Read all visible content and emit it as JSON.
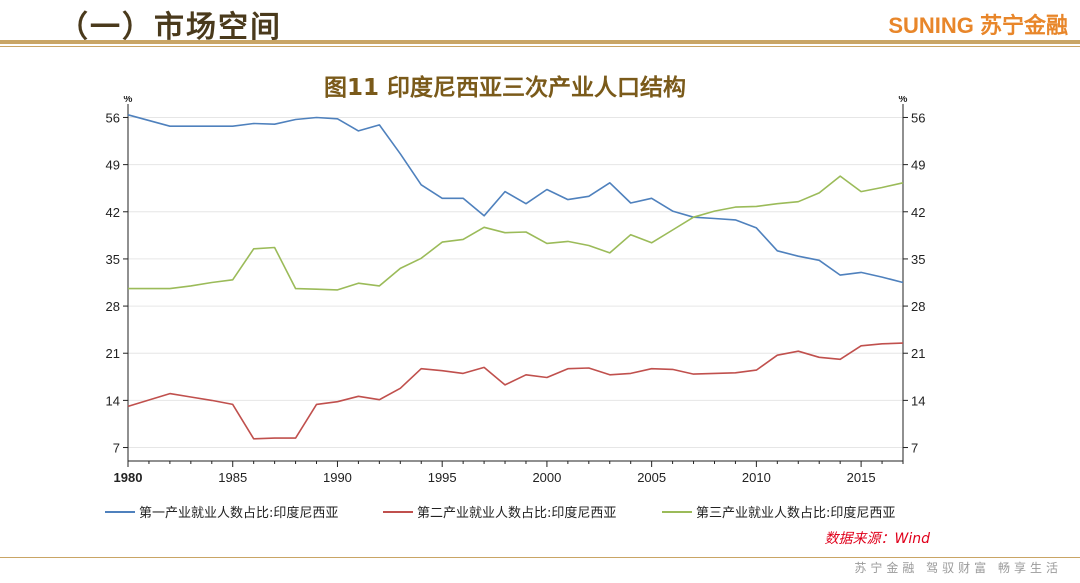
{
  "header": {
    "section_title": "（一）市场空间",
    "brand": "SUNING 苏宁金融"
  },
  "footer": {
    "source": "数据来源：Wind",
    "tagline": "苏宁金融 驾驭财富 畅享生活"
  },
  "colors": {
    "series1": "#4f81bd",
    "series2": "#c0504d",
    "series3": "#9bbb59"
  },
  "chart_data": {
    "type": "line",
    "title": "图11 印度尼西亚三次产业人口结构",
    "y_unit_left": "%",
    "y_unit_right": "%",
    "xlim": [
      1980,
      2017
    ],
    "ylim": [
      5,
      58
    ],
    "x_ticks": [
      1980,
      1985,
      1990,
      1995,
      2000,
      2005,
      2010,
      2015
    ],
    "y_ticks": [
      7,
      14,
      21,
      28,
      35,
      42,
      49,
      56
    ],
    "grid": true,
    "legend_position": "bottom",
    "x": [
      1980,
      1982,
      1983,
      1984,
      1985,
      1986,
      1987,
      1988,
      1989,
      1990,
      1991,
      1992,
      1993,
      1994,
      1995,
      1996,
      1997,
      1998,
      1999,
      2000,
      2001,
      2002,
      2003,
      2004,
      2005,
      2006,
      2007,
      2008,
      2009,
      2010,
      2011,
      2012,
      2013,
      2014,
      2015,
      2016,
      2017
    ],
    "series": [
      {
        "name": "第一产业就业人数占比:印度尼西亚",
        "color": "#4f81bd",
        "values": [
          56.4,
          54.7,
          54.7,
          54.7,
          54.7,
          55.1,
          55.0,
          55.7,
          56.0,
          55.8,
          54.0,
          54.9,
          50.6,
          46.0,
          44.0,
          44.0,
          41.4,
          45.0,
          43.2,
          45.3,
          43.8,
          44.3,
          46.3,
          43.3,
          44.0,
          42.1,
          41.2,
          41.0,
          40.8,
          39.6,
          36.2,
          35.4,
          34.8,
          32.6,
          33.0,
          32.3,
          31.5
        ]
      },
      {
        "name": "第二产业就业人数占比:印度尼西亚",
        "color": "#c0504d",
        "values": [
          13.1,
          15.0,
          14.5,
          14.0,
          13.4,
          8.3,
          8.4,
          8.4,
          13.4,
          13.8,
          14.6,
          14.1,
          15.8,
          18.7,
          18.4,
          18.0,
          18.9,
          16.3,
          17.8,
          17.4,
          18.7,
          18.8,
          17.8,
          18.0,
          18.7,
          18.6,
          17.9,
          18.0,
          18.1,
          18.5,
          20.7,
          21.3,
          20.4,
          20.1,
          22.1,
          22.4,
          22.5
        ]
      },
      {
        "name": "第三产业就业人数占比:印度尼西亚",
        "color": "#9bbb59",
        "values": [
          30.6,
          30.6,
          31.0,
          31.5,
          31.9,
          36.5,
          36.7,
          30.6,
          30.5,
          30.4,
          31.4,
          31.0,
          33.6,
          35.1,
          37.5,
          37.9,
          39.7,
          38.9,
          39.0,
          37.3,
          37.6,
          37.0,
          35.9,
          38.6,
          37.4,
          39.3,
          41.2,
          42.1,
          42.7,
          42.8,
          43.2,
          43.5,
          44.8,
          47.3,
          45.0,
          45.6,
          46.3
        ]
      }
    ]
  }
}
